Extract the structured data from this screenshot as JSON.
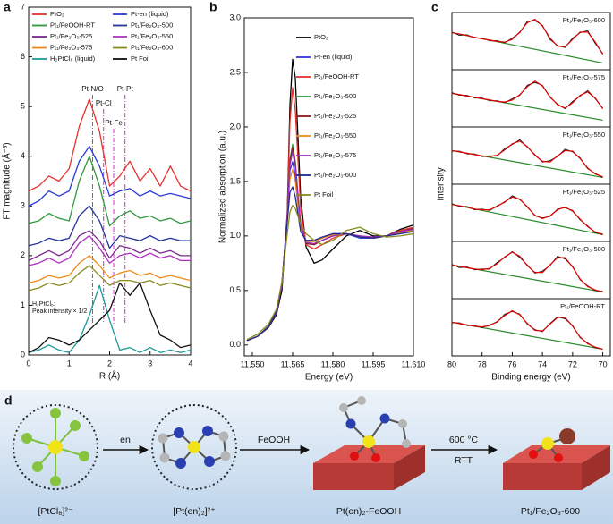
{
  "chart_data": [
    {
      "type": "line",
      "panel_label": "a",
      "xlabel": "R (Å)",
      "ylabel": "FT magnitude (Å⁻³)",
      "xlim": [
        0,
        4
      ],
      "ylim": [
        0,
        7
      ],
      "xticks": [
        0,
        1,
        2,
        3,
        4
      ],
      "yticks": [
        0,
        1,
        2,
        3,
        4,
        5,
        6,
        7
      ],
      "x": [
        0,
        0.25,
        0.5,
        0.75,
        1,
        1.25,
        1.5,
        1.75,
        2,
        2.25,
        2.5,
        2.75,
        3,
        3.25,
        3.5,
        3.75,
        4
      ],
      "series": [
        {
          "name": "PtO₂",
          "color": "#e8302c",
          "values": [
            3.3,
            3.4,
            3.6,
            3.5,
            3.75,
            4.6,
            5.15,
            4.5,
            3.4,
            3.6,
            3.9,
            3.5,
            3.75,
            3.4,
            3.8,
            3.4,
            3.3
          ]
        },
        {
          "name": "Pt-en (liquid)",
          "color": "#2b3bd6",
          "values": [
            3.0,
            3.1,
            3.3,
            3.2,
            3.3,
            3.9,
            4.2,
            3.8,
            3.2,
            3.3,
            3.35,
            3.2,
            3.3,
            3.2,
            3.25,
            3.2,
            3.15
          ]
        },
        {
          "name": "Pt₁/FeOOH-RT",
          "color": "#2e9a3a",
          "values": [
            2.65,
            2.7,
            2.85,
            2.75,
            2.7,
            3.5,
            4.0,
            3.4,
            2.6,
            2.8,
            2.9,
            2.75,
            2.8,
            2.7,
            2.75,
            2.65,
            2.7
          ]
        },
        {
          "name": "Pt₁/Fe₂O₃-500",
          "color": "#23359c",
          "values": [
            2.2,
            2.25,
            2.35,
            2.3,
            2.35,
            2.8,
            3.0,
            2.7,
            2.15,
            2.4,
            2.35,
            2.3,
            2.4,
            2.3,
            2.35,
            2.3,
            2.3
          ]
        },
        {
          "name": "Pt₁/Fe₂O₃-525",
          "color": "#7a2a8c",
          "values": [
            1.9,
            2.0,
            2.1,
            2.0,
            2.1,
            2.4,
            2.5,
            2.3,
            1.95,
            2.2,
            2.15,
            2.05,
            2.15,
            2.05,
            2.1,
            2.0,
            2.0
          ]
        },
        {
          "name": "Pt₁/Fe₂O₃-550",
          "color": "#b02fc0",
          "values": [
            1.8,
            1.85,
            1.95,
            1.85,
            1.95,
            2.25,
            2.4,
            2.15,
            1.85,
            2.0,
            2.05,
            1.95,
            2.05,
            1.95,
            2.0,
            1.9,
            1.9
          ]
        },
        {
          "name": "Pt₁/Fe₂O₃-575",
          "color": "#f08a1c",
          "values": [
            1.45,
            1.5,
            1.6,
            1.55,
            1.6,
            1.85,
            2.0,
            1.8,
            1.55,
            1.65,
            1.7,
            1.6,
            1.65,
            1.55,
            1.6,
            1.55,
            1.5
          ]
        },
        {
          "name": "Pt₁/Fe₂O₃-600",
          "color": "#8a8a1e",
          "values": [
            1.3,
            1.35,
            1.45,
            1.4,
            1.45,
            1.65,
            1.8,
            1.6,
            1.4,
            1.5,
            1.5,
            1.45,
            1.5,
            1.4,
            1.45,
            1.4,
            1.35
          ]
        },
        {
          "name": "H₂PtCl₆ (liquid)",
          "color": "#1e9a9a",
          "values": [
            0.05,
            0.1,
            0.2,
            0.1,
            0.05,
            0.3,
            0.8,
            1.4,
            0.7,
            0.1,
            0.15,
            0.05,
            0.15,
            0.05,
            0.1,
            0.05,
            0.1
          ]
        },
        {
          "name": "Pt Foil",
          "color": "#111111",
          "values": [
            0.05,
            0.15,
            0.35,
            0.3,
            0.2,
            0.3,
            0.5,
            0.7,
            0.9,
            1.45,
            1.2,
            1.45,
            0.9,
            0.4,
            0.3,
            0.15,
            0.2
          ]
        }
      ],
      "reference_lines": [
        {
          "x": 1.58,
          "label": "Pt-N/O"
        },
        {
          "x": 1.85,
          "label": "Pt-Cl"
        },
        {
          "x": 2.1,
          "label": "Pt-Fe"
        },
        {
          "x": 2.38,
          "label": "Pt-Pt"
        }
      ],
      "reference_color": "#d62ad0",
      "note": [
        "H₂PtCl₆:",
        "Peak intensity × 1/2"
      ]
    },
    {
      "type": "line",
      "panel_label": "b",
      "xlabel": "Energy (eV)",
      "ylabel": "Normalized absorption (a.u.)",
      "xlim": [
        11547,
        11610
      ],
      "ylim": [
        -0.1,
        3.0
      ],
      "xticks": [
        {
          "value": 11550,
          "label": "11,550"
        },
        {
          "value": 11565,
          "label": "11,565"
        },
        {
          "value": 11580,
          "label": "11,580"
        },
        {
          "value": 11595,
          "label": "11,595"
        },
        {
          "value": 11610,
          "label": "11,610"
        }
      ],
      "yticks": [
        {
          "value": 0,
          "label": "0.0"
        },
        0.5,
        {
          "value": 1,
          "label": "1.0"
        },
        1.5,
        {
          "value": 2,
          "label": "2.0"
        },
        2.5,
        {
          "value": 3,
          "label": "3.0"
        }
      ],
      "x": [
        11548,
        11552,
        11556,
        11559,
        11561,
        11563,
        11564,
        11565,
        11566,
        11567,
        11568,
        11570,
        11573,
        11576,
        11580,
        11585,
        11590,
        11595,
        11600,
        11605,
        11610
      ],
      "series": [
        {
          "name": "PtO₂",
          "color": "#000000",
          "values": [
            0.04,
            0.08,
            0.16,
            0.28,
            0.5,
            1.2,
            2.2,
            2.62,
            2.45,
            1.9,
            1.35,
            0.9,
            0.75,
            0.78,
            0.88,
            1.0,
            1.05,
            1.0,
            1.0,
            1.06,
            1.1
          ]
        },
        {
          "name": "Pt-en (liquid)",
          "color": "#2b3bd6",
          "values": [
            0.04,
            0.08,
            0.17,
            0.3,
            0.55,
            1.15,
            1.6,
            1.68,
            1.55,
            1.3,
            1.1,
            0.95,
            0.95,
            0.98,
            1.02,
            1.02,
            0.98,
            0.98,
            1.0,
            1.03,
            1.05
          ]
        },
        {
          "name": "Pt₁/FeOOH-RT",
          "color": "#e8302c",
          "values": [
            0.04,
            0.08,
            0.17,
            0.3,
            0.55,
            1.2,
            2.05,
            2.36,
            2.15,
            1.7,
            1.25,
            0.92,
            0.88,
            0.92,
            0.98,
            1.02,
            1.0,
            0.98,
            1.0,
            1.05,
            1.08
          ]
        },
        {
          "name": "Pt₁/Fe₂O₃-500",
          "color": "#2e9a3a",
          "values": [
            0.04,
            0.08,
            0.17,
            0.3,
            0.55,
            1.18,
            1.7,
            1.84,
            1.68,
            1.38,
            1.12,
            0.93,
            0.92,
            0.96,
            1.0,
            1.02,
            1.0,
            0.98,
            1.0,
            1.04,
            1.06
          ]
        },
        {
          "name": "Pt₁/Fe₂O₃-525",
          "color": "#8b1a1a",
          "values": [
            0.04,
            0.08,
            0.17,
            0.3,
            0.55,
            1.17,
            1.68,
            1.81,
            1.66,
            1.36,
            1.11,
            0.93,
            0.92,
            0.96,
            1.0,
            1.02,
            1.0,
            0.99,
            1.0,
            1.04,
            1.07
          ]
        },
        {
          "name": "Pt₁/Fe₂O₃-550",
          "color": "#f08a1c",
          "values": [
            0.04,
            0.08,
            0.17,
            0.3,
            0.56,
            1.15,
            1.52,
            1.61,
            1.5,
            1.28,
            1.08,
            0.95,
            0.95,
            0.98,
            1.01,
            1.02,
            0.99,
            0.98,
            1.0,
            1.03,
            1.05
          ]
        },
        {
          "name": "Pt₁/Fe₂O₃-575",
          "color": "#9a2fc0",
          "values": [
            0.04,
            0.08,
            0.17,
            0.3,
            0.55,
            1.17,
            1.65,
            1.77,
            1.63,
            1.35,
            1.1,
            0.94,
            0.93,
            0.96,
            1.0,
            1.02,
            1.0,
            0.99,
            1.0,
            1.04,
            1.06
          ]
        },
        {
          "name": "Pt₁/Fe₂O₃-600",
          "color": "#1d2a8c",
          "values": [
            0.04,
            0.08,
            0.17,
            0.31,
            0.57,
            1.13,
            1.4,
            1.45,
            1.36,
            1.2,
            1.04,
            0.96,
            0.96,
            0.99,
            1.02,
            1.02,
            0.99,
            0.98,
            1.0,
            1.02,
            1.04
          ]
        },
        {
          "name": "Pt Foil",
          "color": "#8a8a1e",
          "values": [
            0.05,
            0.1,
            0.19,
            0.33,
            0.58,
            1.02,
            1.22,
            1.28,
            1.25,
            1.18,
            1.1,
            1.02,
            0.96,
            0.92,
            0.96,
            1.05,
            1.08,
            1.02,
            0.99,
            1.0,
            1.02
          ]
        }
      ]
    },
    {
      "type": "spectra",
      "panel_label": "c",
      "xlabel": "Binding energy (eV)",
      "ylabel": "Intensity",
      "xlim": [
        80,
        69.5
      ],
      "ylim": [
        0,
        0.85
      ],
      "xticks": [
        80,
        78,
        76,
        74,
        72,
        70
      ],
      "data_color": "#111111",
      "fit_color": "#e00000",
      "background_color": "#2a8a2a",
      "x": [
        80,
        79.5,
        79,
        78.5,
        78,
        77.5,
        77,
        76.5,
        76,
        75.5,
        75,
        74.5,
        74,
        73.5,
        73,
        72.5,
        72,
        71.5,
        71,
        70.5,
        70
      ],
      "spectra": [
        {
          "label": "Pt₁/Fe₂O₃-600",
          "background": [
            0.55,
            0.1
          ],
          "data": [
            0.56,
            0.51,
            0.52,
            0.47,
            0.47,
            0.43,
            0.43,
            0.4,
            0.47,
            0.55,
            0.72,
            0.73,
            0.66,
            0.45,
            0.36,
            0.33,
            0.47,
            0.55,
            0.58,
            0.39,
            0.24
          ],
          "fit": [
            0.55,
            0.53,
            0.51,
            0.48,
            0.46,
            0.44,
            0.42,
            0.41,
            0.45,
            0.56,
            0.7,
            0.75,
            0.65,
            0.47,
            0.35,
            0.34,
            0.45,
            0.56,
            0.56,
            0.41,
            0.23
          ]
        },
        {
          "label": "Pt₁/Fe₂O₃-575",
          "background": [
            0.5,
            0.1
          ],
          "data": [
            0.51,
            0.47,
            0.47,
            0.43,
            0.43,
            0.39,
            0.39,
            0.36,
            0.42,
            0.47,
            0.62,
            0.66,
            0.62,
            0.44,
            0.34,
            0.27,
            0.38,
            0.46,
            0.54,
            0.42,
            0.28
          ],
          "fit": [
            0.5,
            0.48,
            0.46,
            0.44,
            0.42,
            0.4,
            0.38,
            0.37,
            0.4,
            0.48,
            0.6,
            0.68,
            0.61,
            0.45,
            0.33,
            0.28,
            0.36,
            0.47,
            0.52,
            0.43,
            0.27
          ]
        },
        {
          "label": "Pt₁/Fe₂O₃-550",
          "background": [
            0.5,
            0.1
          ],
          "data": [
            0.49,
            0.49,
            0.45,
            0.45,
            0.41,
            0.42,
            0.42,
            0.53,
            0.59,
            0.66,
            0.55,
            0.44,
            0.33,
            0.35,
            0.41,
            0.52,
            0.48,
            0.39,
            0.23,
            0.16,
            0.1
          ],
          "fit": [
            0.5,
            0.48,
            0.46,
            0.44,
            0.42,
            0.41,
            0.43,
            0.51,
            0.6,
            0.64,
            0.56,
            0.43,
            0.34,
            0.33,
            0.42,
            0.5,
            0.49,
            0.38,
            0.24,
            0.15,
            0.11
          ]
        },
        {
          "label": "Pt₁/Fe₂O₃-525",
          "background": [
            0.55,
            0.1
          ],
          "data": [
            0.56,
            0.52,
            0.52,
            0.47,
            0.48,
            0.46,
            0.53,
            0.58,
            0.68,
            0.62,
            0.52,
            0.38,
            0.35,
            0.37,
            0.48,
            0.5,
            0.46,
            0.32,
            0.23,
            0.13,
            0.11
          ],
          "fit": [
            0.55,
            0.53,
            0.51,
            0.48,
            0.47,
            0.47,
            0.52,
            0.59,
            0.66,
            0.63,
            0.51,
            0.39,
            0.34,
            0.38,
            0.47,
            0.51,
            0.45,
            0.33,
            0.22,
            0.14,
            0.1
          ]
        },
        {
          "label": "Pt₁/Fe₂O₃-500",
          "background": [
            0.5,
            0.1
          ],
          "data": [
            0.51,
            0.46,
            0.47,
            0.43,
            0.44,
            0.44,
            0.54,
            0.61,
            0.7,
            0.61,
            0.5,
            0.38,
            0.41,
            0.49,
            0.63,
            0.59,
            0.48,
            0.28,
            0.19,
            0.12,
            0.11
          ],
          "fit": [
            0.5,
            0.48,
            0.46,
            0.44,
            0.43,
            0.45,
            0.52,
            0.62,
            0.69,
            0.63,
            0.49,
            0.39,
            0.39,
            0.5,
            0.61,
            0.61,
            0.47,
            0.29,
            0.18,
            0.13,
            0.1
          ]
        },
        {
          "label": "Pt₁/FeOOH-RT",
          "background": [
            0.5,
            0.1
          ],
          "data": [
            0.49,
            0.49,
            0.45,
            0.45,
            0.42,
            0.46,
            0.5,
            0.62,
            0.66,
            0.62,
            0.47,
            0.39,
            0.36,
            0.48,
            0.58,
            0.55,
            0.45,
            0.27,
            0.19,
            0.12,
            0.1
          ],
          "fit": [
            0.5,
            0.48,
            0.46,
            0.44,
            0.43,
            0.45,
            0.51,
            0.6,
            0.67,
            0.61,
            0.48,
            0.38,
            0.37,
            0.47,
            0.57,
            0.57,
            0.44,
            0.28,
            0.18,
            0.13,
            0.1
          ]
        }
      ]
    }
  ],
  "diagram": {
    "panel_label": "d",
    "labels": [
      "[PtCl₆]²⁻",
      "[Pt(en)₂]²⁺",
      "Pt(en)₂-FeOOH",
      "Pt₁/Fe₂O₃-600"
    ],
    "arrows": [
      "en",
      "FeOOH",
      "600 °C",
      "RTT"
    ]
  }
}
